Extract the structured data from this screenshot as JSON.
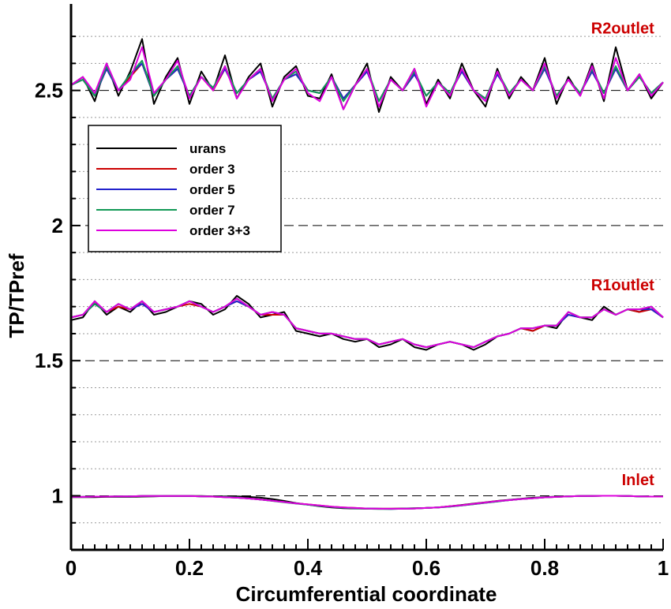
{
  "chart_data": {
    "type": "line",
    "xlabel": "Circumferential coordinate",
    "ylabel": "TP/TPref",
    "xlim": [
      0,
      1
    ],
    "ylim": [
      0.8,
      2.82
    ],
    "x_ticks": [
      0,
      0.2,
      0.4,
      0.6,
      0.8,
      1
    ],
    "x_tick_labels": [
      "0",
      "0.2",
      "0.4",
      "0.6",
      "0.8",
      "1"
    ],
    "y_ticks": [
      1,
      1.5,
      2,
      2.5
    ],
    "y_tick_labels": [
      "1",
      "1.5",
      "2",
      "2.5"
    ],
    "grid": "horizontal dotted, dashed at labeled ticks",
    "legend_position": "upper-left",
    "annotations": [
      {
        "text": "R2outlet",
        "x": 0.985,
        "y": 2.71,
        "color": "#cc0000"
      },
      {
        "text": "R1outlet",
        "x": 0.985,
        "y": 1.76,
        "color": "#cc0000"
      },
      {
        "text": "Inlet",
        "x": 0.985,
        "y": 1.04,
        "color": "#cc0000"
      }
    ],
    "series": [
      {
        "name": "urans",
        "color": "#000000",
        "x": [
          0,
          0.02,
          0.04,
          0.06,
          0.08,
          0.1,
          0.12,
          0.14,
          0.16,
          0.18,
          0.2,
          0.22,
          0.24,
          0.26,
          0.28,
          0.3,
          0.32,
          0.34,
          0.36,
          0.38,
          0.4,
          0.42,
          0.44,
          0.46,
          0.48,
          0.5,
          0.52,
          0.54,
          0.56,
          0.58,
          0.6,
          0.62,
          0.64,
          0.66,
          0.68,
          0.7,
          0.72,
          0.74,
          0.76,
          0.78,
          0.8,
          0.82,
          0.84,
          0.86,
          0.88,
          0.9,
          0.92,
          0.94,
          0.96,
          0.98,
          1
        ],
        "inlet": [
          0.995,
          0.995,
          0.995,
          0.996,
          0.996,
          0.996,
          0.997,
          0.998,
          0.999,
          0.999,
          0.999,
          0.999,
          0.998,
          0.998,
          0.998,
          0.996,
          0.993,
          0.988,
          0.981,
          0.973,
          0.967,
          0.961,
          0.957,
          0.954,
          0.953,
          0.952,
          0.952,
          0.952,
          0.953,
          0.954,
          0.955,
          0.957,
          0.961,
          0.966,
          0.971,
          0.976,
          0.981,
          0.985,
          0.989,
          0.993,
          0.995,
          0.997,
          0.998,
          0.999,
          1.0,
          1.0,
          1.0,
          0.999,
          0.998,
          0.997,
          0.997
        ],
        "r1outlet": [
          1.65,
          1.66,
          1.72,
          1.67,
          1.7,
          1.68,
          1.72,
          1.67,
          1.68,
          1.7,
          1.72,
          1.71,
          1.67,
          1.69,
          1.74,
          1.71,
          1.66,
          1.67,
          1.68,
          1.61,
          1.6,
          1.59,
          1.6,
          1.58,
          1.57,
          1.58,
          1.55,
          1.56,
          1.58,
          1.55,
          1.54,
          1.56,
          1.57,
          1.56,
          1.54,
          1.56,
          1.59,
          1.6,
          1.62,
          1.61,
          1.63,
          1.62,
          1.68,
          1.66,
          1.65,
          1.7,
          1.67,
          1.69,
          1.68,
          1.7,
          1.66
        ],
        "r2outlet": [
          2.52,
          2.55,
          2.46,
          2.6,
          2.48,
          2.57,
          2.69,
          2.45,
          2.55,
          2.62,
          2.45,
          2.57,
          2.5,
          2.63,
          2.47,
          2.55,
          2.6,
          2.44,
          2.55,
          2.59,
          2.48,
          2.47,
          2.56,
          2.43,
          2.52,
          2.6,
          2.42,
          2.55,
          2.5,
          2.58,
          2.45,
          2.54,
          2.47,
          2.6,
          2.5,
          2.44,
          2.58,
          2.47,
          2.55,
          2.5,
          2.62,
          2.45,
          2.55,
          2.48,
          2.6,
          2.46,
          2.66,
          2.5,
          2.56,
          2.47,
          2.53
        ]
      },
      {
        "name": "order 3",
        "color": "#cc0000",
        "x": [
          0,
          0.02,
          0.04,
          0.06,
          0.08,
          0.1,
          0.12,
          0.14,
          0.16,
          0.18,
          0.2,
          0.22,
          0.24,
          0.26,
          0.28,
          0.3,
          0.32,
          0.34,
          0.36,
          0.38,
          0.4,
          0.42,
          0.44,
          0.46,
          0.48,
          0.5,
          0.52,
          0.54,
          0.56,
          0.58,
          0.6,
          0.62,
          0.64,
          0.66,
          0.68,
          0.7,
          0.72,
          0.74,
          0.76,
          0.78,
          0.8,
          0.82,
          0.84,
          0.86,
          0.88,
          0.9,
          0.92,
          0.94,
          0.96,
          0.98,
          1
        ],
        "inlet": [
          0.996,
          0.996,
          0.997,
          0.997,
          0.998,
          0.998,
          0.999,
          0.999,
          0.999,
          0.999,
          0.999,
          0.998,
          0.997,
          0.995,
          0.993,
          0.99,
          0.986,
          0.982,
          0.977,
          0.972,
          0.968,
          0.964,
          0.96,
          0.957,
          0.955,
          0.953,
          0.952,
          0.952,
          0.952,
          0.953,
          0.955,
          0.957,
          0.961,
          0.965,
          0.97,
          0.975,
          0.98,
          0.984,
          0.988,
          0.991,
          0.994,
          0.996,
          0.998,
          0.999,
          0.999,
          1.0,
          1.0,
          0.999,
          0.998,
          0.997,
          0.997
        ],
        "r1outlet": [
          1.66,
          1.67,
          1.71,
          1.68,
          1.7,
          1.69,
          1.71,
          1.68,
          1.69,
          1.7,
          1.71,
          1.7,
          1.68,
          1.7,
          1.72,
          1.7,
          1.67,
          1.67,
          1.67,
          1.62,
          1.61,
          1.6,
          1.6,
          1.59,
          1.58,
          1.58,
          1.56,
          1.57,
          1.58,
          1.56,
          1.55,
          1.56,
          1.57,
          1.56,
          1.55,
          1.57,
          1.59,
          1.6,
          1.62,
          1.61,
          1.63,
          1.63,
          1.67,
          1.66,
          1.66,
          1.69,
          1.67,
          1.69,
          1.68,
          1.69,
          1.66
        ],
        "r2outlet": [
          2.52,
          2.54,
          2.48,
          2.58,
          2.5,
          2.55,
          2.6,
          2.48,
          2.54,
          2.58,
          2.48,
          2.55,
          2.5,
          2.58,
          2.49,
          2.54,
          2.57,
          2.47,
          2.54,
          2.56,
          2.5,
          2.49,
          2.55,
          2.47,
          2.52,
          2.57,
          2.46,
          2.54,
          2.5,
          2.56,
          2.48,
          2.53,
          2.49,
          2.57,
          2.5,
          2.47,
          2.56,
          2.49,
          2.54,
          2.5,
          2.58,
          2.48,
          2.54,
          2.49,
          2.57,
          2.49,
          2.58,
          2.5,
          2.55,
          2.49,
          2.53
        ]
      },
      {
        "name": "order 5",
        "color": "#2222cc",
        "x": [
          0,
          0.02,
          0.04,
          0.06,
          0.08,
          0.1,
          0.12,
          0.14,
          0.16,
          0.18,
          0.2,
          0.22,
          0.24,
          0.26,
          0.28,
          0.3,
          0.32,
          0.34,
          0.36,
          0.38,
          0.4,
          0.42,
          0.44,
          0.46,
          0.48,
          0.5,
          0.52,
          0.54,
          0.56,
          0.58,
          0.6,
          0.62,
          0.64,
          0.66,
          0.68,
          0.7,
          0.72,
          0.74,
          0.76,
          0.78,
          0.8,
          0.82,
          0.84,
          0.86,
          0.88,
          0.9,
          0.92,
          0.94,
          0.96,
          0.98,
          1
        ],
        "inlet": [
          0.996,
          0.996,
          0.997,
          0.997,
          0.998,
          0.998,
          0.999,
          0.999,
          0.999,
          0.999,
          0.999,
          0.998,
          0.997,
          0.995,
          0.993,
          0.99,
          0.986,
          0.982,
          0.977,
          0.972,
          0.967,
          0.963,
          0.959,
          0.956,
          0.954,
          0.953,
          0.952,
          0.951,
          0.952,
          0.953,
          0.955,
          0.957,
          0.96,
          0.964,
          0.969,
          0.974,
          0.979,
          0.984,
          0.988,
          0.991,
          0.994,
          0.996,
          0.998,
          0.999,
          0.999,
          1.0,
          1.0,
          0.999,
          0.998,
          0.997,
          0.997
        ],
        "r1outlet": [
          1.66,
          1.67,
          1.71,
          1.68,
          1.71,
          1.69,
          1.71,
          1.68,
          1.69,
          1.7,
          1.72,
          1.7,
          1.68,
          1.7,
          1.72,
          1.7,
          1.67,
          1.68,
          1.67,
          1.62,
          1.61,
          1.6,
          1.6,
          1.59,
          1.58,
          1.58,
          1.56,
          1.57,
          1.58,
          1.56,
          1.55,
          1.56,
          1.57,
          1.56,
          1.55,
          1.57,
          1.59,
          1.6,
          1.62,
          1.62,
          1.63,
          1.63,
          1.67,
          1.66,
          1.66,
          1.69,
          1.67,
          1.69,
          1.69,
          1.69,
          1.66
        ],
        "r2outlet": [
          2.52,
          2.54,
          2.48,
          2.58,
          2.5,
          2.56,
          2.6,
          2.48,
          2.54,
          2.58,
          2.48,
          2.55,
          2.51,
          2.58,
          2.49,
          2.54,
          2.57,
          2.47,
          2.54,
          2.56,
          2.5,
          2.49,
          2.55,
          2.47,
          2.52,
          2.57,
          2.46,
          2.54,
          2.5,
          2.56,
          2.48,
          2.53,
          2.49,
          2.57,
          2.5,
          2.47,
          2.56,
          2.49,
          2.54,
          2.5,
          2.58,
          2.48,
          2.54,
          2.49,
          2.57,
          2.49,
          2.58,
          2.5,
          2.55,
          2.49,
          2.53
        ]
      },
      {
        "name": "order 7",
        "color": "#119955",
        "x": [
          0,
          0.02,
          0.04,
          0.06,
          0.08,
          0.1,
          0.12,
          0.14,
          0.16,
          0.18,
          0.2,
          0.22,
          0.24,
          0.26,
          0.28,
          0.3,
          0.32,
          0.34,
          0.36,
          0.38,
          0.4,
          0.42,
          0.44,
          0.46,
          0.48,
          0.5,
          0.52,
          0.54,
          0.56,
          0.58,
          0.6,
          0.62,
          0.64,
          0.66,
          0.68,
          0.7,
          0.72,
          0.74,
          0.76,
          0.78,
          0.8,
          0.82,
          0.84,
          0.86,
          0.88,
          0.9,
          0.92,
          0.94,
          0.96,
          0.98,
          1
        ],
        "inlet": [
          0.996,
          0.996,
          0.997,
          0.997,
          0.998,
          0.998,
          0.999,
          0.999,
          0.999,
          0.999,
          0.999,
          0.998,
          0.997,
          0.996,
          0.994,
          0.99,
          0.986,
          0.981,
          0.976,
          0.971,
          0.967,
          0.963,
          0.959,
          0.956,
          0.954,
          0.952,
          0.951,
          0.951,
          0.952,
          0.953,
          0.955,
          0.957,
          0.96,
          0.964,
          0.969,
          0.974,
          0.979,
          0.984,
          0.988,
          0.991,
          0.994,
          0.996,
          0.998,
          0.999,
          0.999,
          1.0,
          1.0,
          0.999,
          0.998,
          0.997,
          0.997
        ],
        "r1outlet": [
          1.66,
          1.67,
          1.71,
          1.68,
          1.71,
          1.69,
          1.72,
          1.68,
          1.69,
          1.7,
          1.72,
          1.7,
          1.68,
          1.7,
          1.73,
          1.7,
          1.67,
          1.68,
          1.67,
          1.62,
          1.61,
          1.6,
          1.6,
          1.59,
          1.58,
          1.58,
          1.56,
          1.57,
          1.58,
          1.56,
          1.55,
          1.56,
          1.57,
          1.56,
          1.55,
          1.57,
          1.59,
          1.6,
          1.62,
          1.62,
          1.63,
          1.63,
          1.68,
          1.66,
          1.66,
          1.69,
          1.67,
          1.69,
          1.69,
          1.7,
          1.66
        ],
        "r2outlet": [
          2.52,
          2.54,
          2.48,
          2.59,
          2.5,
          2.56,
          2.61,
          2.48,
          2.54,
          2.59,
          2.48,
          2.55,
          2.51,
          2.59,
          2.49,
          2.54,
          2.58,
          2.47,
          2.54,
          2.57,
          2.5,
          2.49,
          2.55,
          2.46,
          2.52,
          2.58,
          2.46,
          2.54,
          2.5,
          2.57,
          2.48,
          2.53,
          2.49,
          2.58,
          2.5,
          2.47,
          2.57,
          2.49,
          2.54,
          2.5,
          2.59,
          2.48,
          2.54,
          2.49,
          2.58,
          2.49,
          2.59,
          2.5,
          2.55,
          2.49,
          2.53
        ]
      },
      {
        "name": "order 3+3",
        "color": "#dd00dd",
        "x": [
          0,
          0.02,
          0.04,
          0.06,
          0.08,
          0.1,
          0.12,
          0.14,
          0.16,
          0.18,
          0.2,
          0.22,
          0.24,
          0.26,
          0.28,
          0.3,
          0.32,
          0.34,
          0.36,
          0.38,
          0.4,
          0.42,
          0.44,
          0.46,
          0.48,
          0.5,
          0.52,
          0.54,
          0.56,
          0.58,
          0.6,
          0.62,
          0.64,
          0.66,
          0.68,
          0.7,
          0.72,
          0.74,
          0.76,
          0.78,
          0.8,
          0.82,
          0.84,
          0.86,
          0.88,
          0.9,
          0.92,
          0.94,
          0.96,
          0.98,
          1
        ],
        "inlet": [
          0.996,
          0.996,
          0.997,
          0.997,
          0.998,
          0.998,
          0.999,
          0.999,
          0.999,
          0.999,
          0.999,
          0.998,
          0.997,
          0.995,
          0.993,
          0.99,
          0.986,
          0.982,
          0.977,
          0.972,
          0.968,
          0.964,
          0.96,
          0.957,
          0.955,
          0.953,
          0.952,
          0.952,
          0.952,
          0.953,
          0.955,
          0.957,
          0.961,
          0.965,
          0.97,
          0.975,
          0.98,
          0.984,
          0.988,
          0.991,
          0.994,
          0.996,
          0.998,
          0.999,
          0.999,
          1.0,
          1.0,
          0.999,
          0.998,
          0.997,
          0.997
        ],
        "r1outlet": [
          1.66,
          1.67,
          1.72,
          1.68,
          1.71,
          1.69,
          1.72,
          1.68,
          1.69,
          1.7,
          1.72,
          1.7,
          1.68,
          1.7,
          1.73,
          1.7,
          1.67,
          1.68,
          1.67,
          1.62,
          1.61,
          1.6,
          1.6,
          1.59,
          1.58,
          1.58,
          1.56,
          1.57,
          1.58,
          1.56,
          1.55,
          1.56,
          1.57,
          1.56,
          1.55,
          1.57,
          1.59,
          1.6,
          1.62,
          1.62,
          1.63,
          1.63,
          1.68,
          1.66,
          1.66,
          1.69,
          1.67,
          1.69,
          1.69,
          1.7,
          1.66
        ],
        "r2outlet": [
          2.52,
          2.55,
          2.49,
          2.6,
          2.5,
          2.54,
          2.66,
          2.49,
          2.54,
          2.61,
          2.47,
          2.55,
          2.5,
          2.59,
          2.47,
          2.54,
          2.58,
          2.46,
          2.54,
          2.58,
          2.49,
          2.46,
          2.55,
          2.43,
          2.52,
          2.58,
          2.44,
          2.54,
          2.5,
          2.58,
          2.44,
          2.53,
          2.48,
          2.58,
          2.5,
          2.46,
          2.57,
          2.48,
          2.54,
          2.5,
          2.6,
          2.47,
          2.54,
          2.48,
          2.59,
          2.47,
          2.62,
          2.5,
          2.56,
          2.48,
          2.53
        ]
      }
    ]
  }
}
